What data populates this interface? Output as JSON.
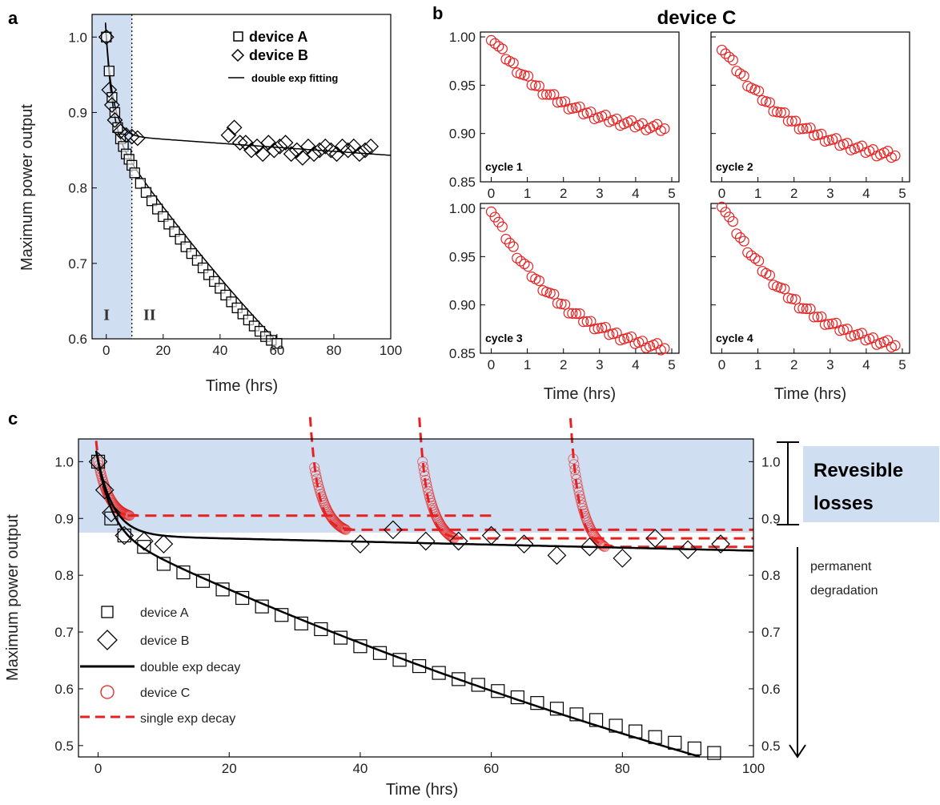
{
  "panel_letters": {
    "a": "a",
    "b": "b",
    "c": "c"
  },
  "chart_data": [
    {
      "id": "a",
      "type": "scatter",
      "xlabel": "Time (hrs)",
      "ylabel": "Maximum power output",
      "xlim": [
        -5,
        100
      ],
      "ylim": [
        0.6,
        1.03
      ],
      "xticks": [
        0,
        20,
        40,
        60,
        80,
        100
      ],
      "yticks": [
        0.6,
        0.7,
        0.8,
        0.9,
        1.0
      ],
      "xtick_labels": [
        "0",
        "20",
        "40",
        "60",
        "80",
        "100"
      ],
      "ytick_labels": [
        "0.6",
        "0.7",
        "0.8",
        "0.9",
        "1.0"
      ],
      "shaded_region": [
        -5,
        9
      ],
      "region_labels": [
        "I",
        "II"
      ],
      "legend": {
        "device_a": "device  A",
        "device_b": "device  B",
        "fit": "double exp fitting"
      },
      "series": [
        {
          "name": "device  A",
          "marker": "square",
          "x": [
            0,
            1,
            2,
            3,
            4,
            5,
            6,
            7,
            8,
            9,
            10,
            12,
            14,
            16,
            18,
            20,
            22,
            24,
            26,
            28,
            30,
            32,
            34,
            36,
            38,
            40,
            42,
            44,
            46,
            48,
            50,
            52,
            54,
            56,
            58,
            60
          ],
          "y": [
            1.0,
            0.955,
            0.92,
            0.9,
            0.88,
            0.865,
            0.855,
            0.845,
            0.838,
            0.83,
            0.82,
            0.806,
            0.794,
            0.783,
            0.772,
            0.762,
            0.752,
            0.742,
            0.732,
            0.722,
            0.713,
            0.704,
            0.694,
            0.685,
            0.676,
            0.667,
            0.658,
            0.649,
            0.641,
            0.633,
            0.625,
            0.617,
            0.61,
            0.603,
            0.598,
            0.594
          ]
        },
        {
          "name": "device  B",
          "marker": "diamond",
          "x": [
            0,
            1,
            2,
            3,
            5,
            7,
            9,
            11,
            43,
            45,
            47,
            49,
            51,
            53,
            55,
            57,
            59,
            61,
            63,
            65,
            67,
            69,
            71,
            73,
            75,
            77,
            79,
            81,
            83,
            85,
            87,
            89,
            91,
            93
          ],
          "y": [
            1.0,
            0.93,
            0.91,
            0.89,
            0.875,
            0.87,
            0.868,
            0.866,
            0.87,
            0.88,
            0.86,
            0.86,
            0.85,
            0.855,
            0.845,
            0.86,
            0.85,
            0.855,
            0.86,
            0.845,
            0.85,
            0.84,
            0.855,
            0.845,
            0.85,
            0.855,
            0.85,
            0.845,
            0.855,
            0.85,
            0.855,
            0.845,
            0.85,
            0.855
          ]
        }
      ],
      "fit_curves": [
        {
          "name": "fit A",
          "a1": 0.12,
          "tau1": 2.2,
          "a2": 1.0,
          "tau2": 180,
          "c": -0.12,
          "x_range": [
            -0.3,
            60
          ]
        },
        {
          "name": "fit B",
          "a1": 0.132,
          "tau1": 2.5,
          "a2": 0.87,
          "tau2": 3200,
          "c": 0.0,
          "x_range": [
            -0.3,
            100
          ]
        }
      ]
    },
    {
      "id": "b",
      "type": "scatter",
      "title": "device C",
      "xlabel": "Time (hrs)",
      "xlim": [
        -0.3,
        5.2
      ],
      "ylim": [
        0.85,
        1.005
      ],
      "xticks": [
        0,
        1,
        2,
        3,
        4,
        5
      ],
      "yticks": [
        0.85,
        0.9,
        0.95,
        1.0
      ],
      "xtick_labels": [
        "0",
        "1",
        "2",
        "3",
        "4",
        "5"
      ],
      "ytick_labels": [
        "0.85",
        "0.90",
        "0.95",
        "1.00"
      ],
      "subplots": [
        {
          "label": "cycle 1",
          "start": 1.0,
          "end": 0.905,
          "amp": 0.11,
          "tau": 1.8
        },
        {
          "label": "cycle 2",
          "start": 0.99,
          "end": 0.877,
          "amp": 0.13,
          "tau": 2.0
        },
        {
          "label": "cycle 3",
          "start": 1.0,
          "end": 0.855,
          "amp": 0.155,
          "tau": 2.0
        },
        {
          "label": "cycle 4",
          "start": 1.005,
          "end": 0.858,
          "amp": 0.16,
          "tau": 2.1
        }
      ]
    },
    {
      "id": "c",
      "type": "scatter",
      "xlabel": "Time (hrs)",
      "ylabel": "Maximum power output",
      "xlim": [
        -3,
        100
      ],
      "ylim": [
        0.48,
        1.04
      ],
      "xticks": [
        0,
        20,
        40,
        60,
        80,
        100
      ],
      "yticks": [
        0.5,
        0.6,
        0.7,
        0.8,
        0.9,
        1.0
      ],
      "xtick_labels": [
        "0",
        "20",
        "40",
        "60",
        "80",
        "100"
      ],
      "ytick_labels": [
        "0.5",
        "0.6",
        "0.7",
        "0.8",
        "0.9",
        "1.0"
      ],
      "right_ytick_labels": [
        "0.5",
        "0.6",
        "0.7",
        "0.8",
        "0.9",
        "1.0"
      ],
      "shaded_ylim": [
        0.875,
        1.04
      ],
      "legend": {
        "device_a": "device  A",
        "device_b": "device B",
        "fit_double": "double exp decay",
        "device_c": "device C",
        "fit_single": "single exp decay"
      },
      "annotations": {
        "reversible": [
          "Revesible",
          "losses"
        ],
        "permanent": [
          "permanent",
          "degradation"
        ]
      },
      "series": [
        {
          "name": "device  A",
          "marker": "square",
          "x": [
            0,
            2,
            4,
            7,
            10,
            13,
            16,
            19,
            22,
            25,
            28,
            31,
            34,
            37,
            40,
            43,
            46,
            49,
            52,
            55,
            58,
            61,
            64,
            67,
            70,
            73,
            76,
            79,
            82,
            85,
            88,
            91,
            94
          ],
          "y": [
            1.0,
            0.9,
            0.87,
            0.85,
            0.82,
            0.805,
            0.79,
            0.775,
            0.76,
            0.745,
            0.73,
            0.715,
            0.705,
            0.69,
            0.675,
            0.663,
            0.651,
            0.64,
            0.628,
            0.617,
            0.607,
            0.596,
            0.585,
            0.575,
            0.565,
            0.555,
            0.545,
            0.535,
            0.525,
            0.515,
            0.505,
            0.495,
            0.487
          ]
        },
        {
          "name": "device B",
          "marker": "diamond",
          "x": [
            0,
            1,
            2,
            4,
            7,
            10,
            40,
            45,
            50,
            55,
            60,
            65,
            70,
            75,
            80,
            85,
            90,
            95
          ],
          "y": [
            1.0,
            0.95,
            0.91,
            0.87,
            0.86,
            0.855,
            0.855,
            0.88,
            0.86,
            0.86,
            0.87,
            0.855,
            0.835,
            0.85,
            0.83,
            0.865,
            0.845,
            0.855
          ]
        }
      ],
      "device_c_cycles": [
        {
          "t0": 0,
          "start": 1.0,
          "amp": 0.11,
          "tau": 1.8,
          "n": 45,
          "end_t": 4.8,
          "line_start": -0.3,
          "plateau": 0.905,
          "plateau_end": 60
        },
        {
          "t0": 33,
          "start": 0.99,
          "amp": 0.13,
          "tau": 2.0,
          "n": 40,
          "end_t": 4.8,
          "line_start": 32,
          "plateau": 0.88,
          "plateau_end": 100
        },
        {
          "t0": 49.5,
          "start": 1.0,
          "amp": 0.155,
          "tau": 2.0,
          "n": 40,
          "end_t": 4.8,
          "line_start": 48.5,
          "plateau": 0.865,
          "plateau_end": 100
        },
        {
          "t0": 72.5,
          "start": 1.005,
          "amp": 0.16,
          "tau": 2.1,
          "n": 40,
          "end_t": 4.8,
          "line_start": 71.5,
          "plateau": 0.85,
          "plateau_end": 100
        }
      ],
      "fit_curves": [
        {
          "name": "fit A",
          "a1": 0.12,
          "tau1": 2.2,
          "a2": 1.0,
          "tau2": 180,
          "c": -0.12,
          "x_range": [
            -0.3,
            96
          ]
        },
        {
          "name": "fit B",
          "a1": 0.132,
          "tau1": 2.5,
          "a2": 0.87,
          "tau2": 3200,
          "c": 0.0,
          "x_range": [
            -0.3,
            100
          ]
        }
      ]
    }
  ],
  "colors": {
    "shade": "#cfdef0",
    "red": "#e52222",
    "black": "#000000"
  }
}
